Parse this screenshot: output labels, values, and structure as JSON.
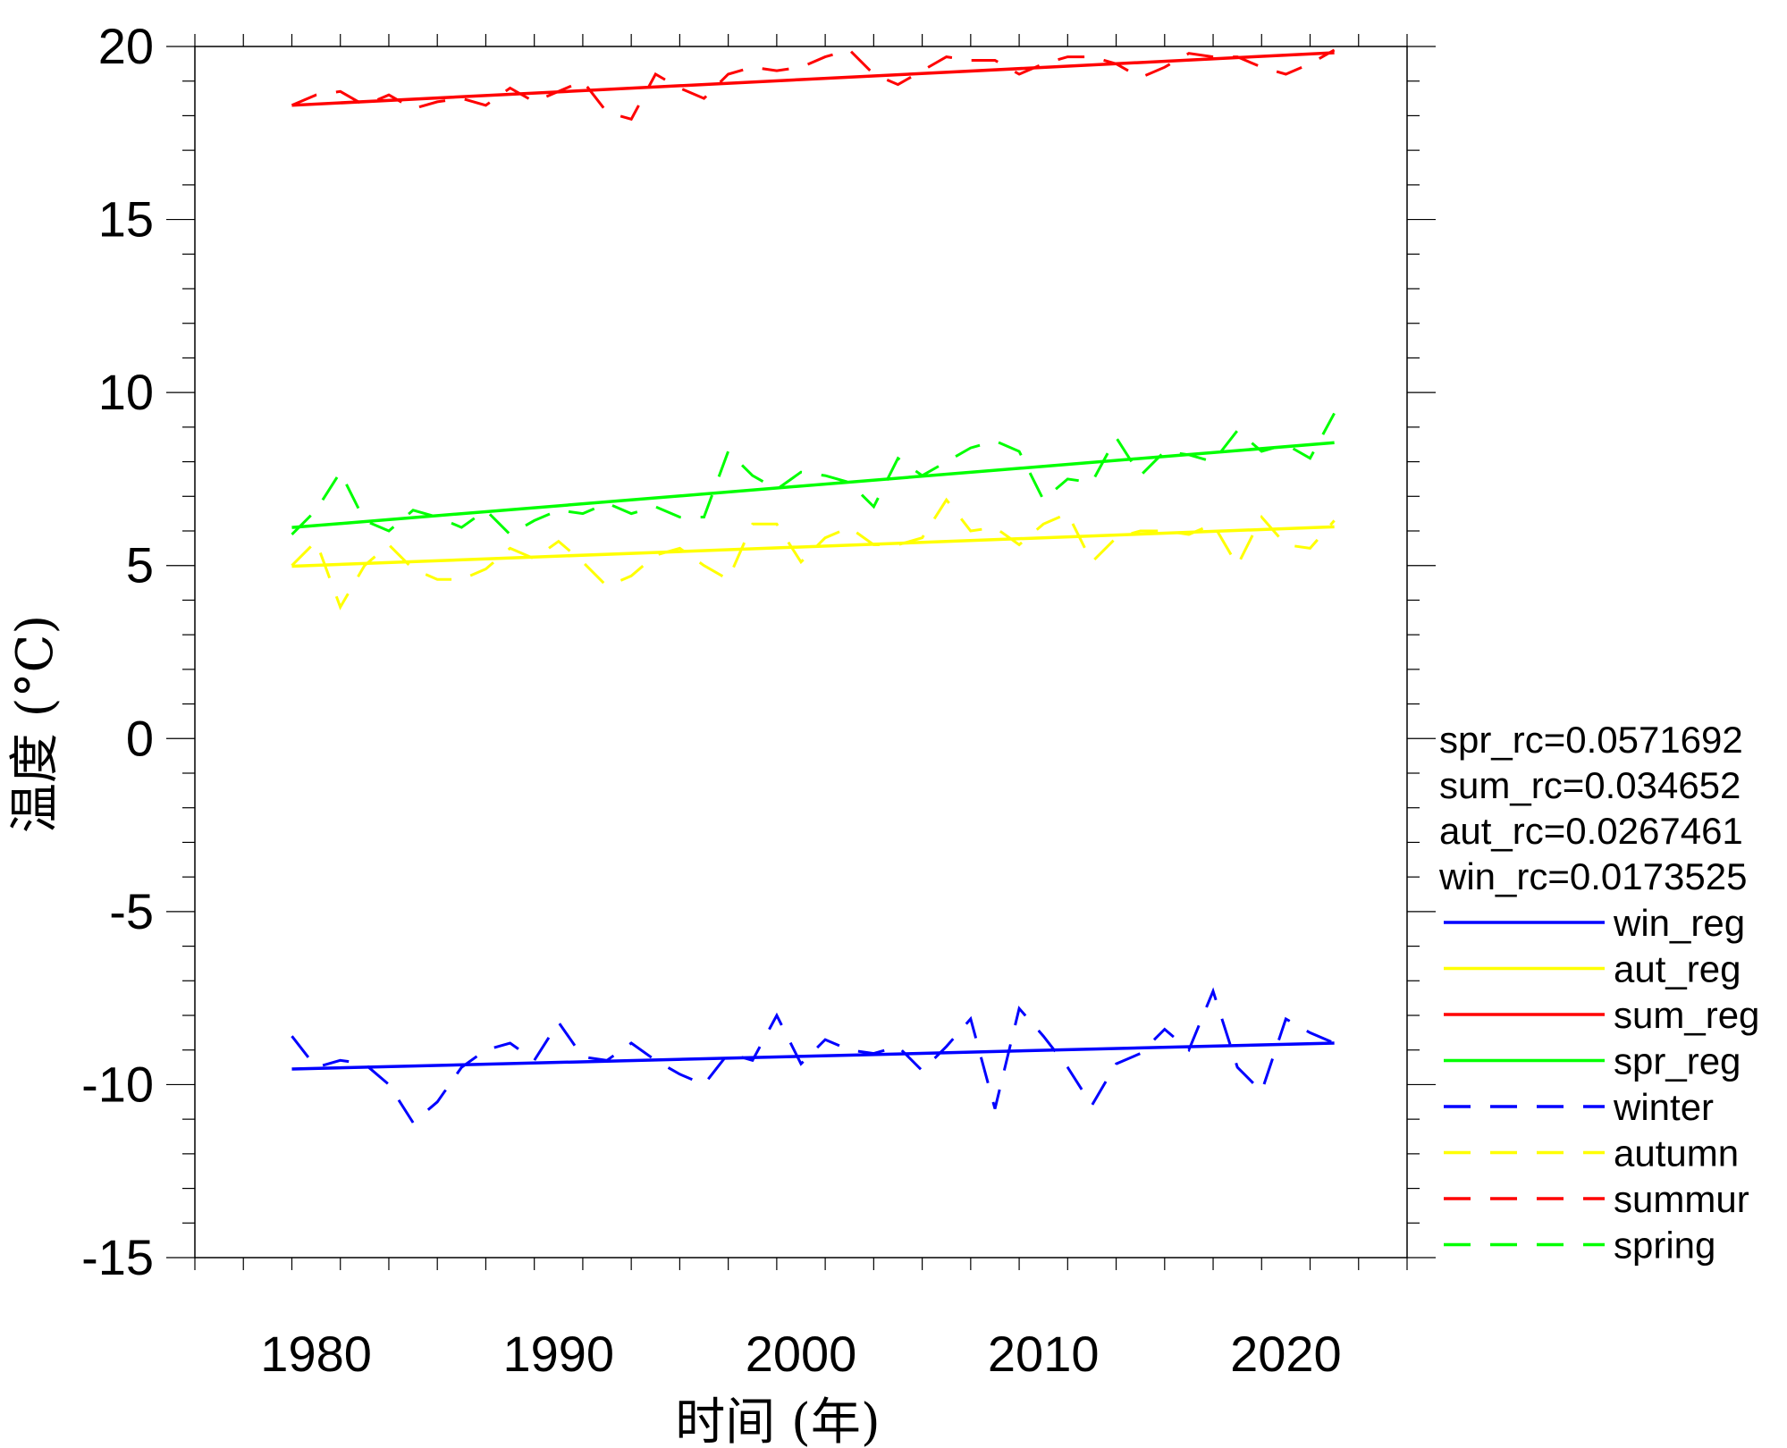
{
  "chart_data": {
    "type": "line",
    "title": "",
    "xlabel": "时间 (年)",
    "ylabel": "温度 (°C)",
    "xlim": [
      1975,
      2025
    ],
    "ylim": [
      -15,
      20
    ],
    "xticks": [
      1980,
      1990,
      2000,
      2010,
      2020
    ],
    "yticks": [
      20,
      15,
      10,
      5,
      0,
      -5,
      -10,
      -15
    ],
    "grid": false,
    "legend_position": "right",
    "x": [
      1979,
      1980,
      1981,
      1982,
      1983,
      1984,
      1985,
      1986,
      1987,
      1988,
      1989,
      1990,
      1991,
      1992,
      1993,
      1994,
      1995,
      1996,
      1997,
      1998,
      1999,
      2000,
      2001,
      2002,
      2003,
      2004,
      2005,
      2006,
      2007,
      2008,
      2009,
      2010,
      2011,
      2012,
      2013,
      2014,
      2015,
      2016,
      2017,
      2018,
      2019,
      2020,
      2021,
      2022
    ],
    "coefficients": [
      {
        "name": "spr_rc",
        "text": "spr_rc=0.0571692"
      },
      {
        "name": "sum_rc",
        "text": "sum_rc=0.034652"
      },
      {
        "name": "aut_rc",
        "text": "aut_rc=0.0267461"
      },
      {
        "name": "win_rc",
        "text": "win_rc=0.0173525"
      }
    ],
    "regression_lines": [
      {
        "name": "win_reg",
        "color": "#0000ff",
        "start": [
          1979,
          -9.55
        ],
        "end": [
          2022,
          -8.8
        ]
      },
      {
        "name": "aut_reg",
        "color": "#ffff00",
        "start": [
          1979,
          4.98
        ],
        "end": [
          2022,
          6.12
        ]
      },
      {
        "name": "sum_reg",
        "color": "#ff0000",
        "start": [
          1979,
          18.3
        ],
        "end": [
          2022,
          19.82
        ]
      },
      {
        "name": "spr_reg",
        "color": "#00ff00",
        "start": [
          1979,
          6.1
        ],
        "end": [
          2022,
          8.55
        ]
      }
    ],
    "series": [
      {
        "name": "winter",
        "color": "#0000ff",
        "style": "dashed",
        "values": [
          -8.6,
          -9.5,
          -9.3,
          -9.4,
          -10.0,
          -11.1,
          -10.5,
          -9.5,
          -9.0,
          -8.8,
          -9.3,
          -8.2,
          -9.2,
          -9.3,
          -8.8,
          -9.3,
          -9.7,
          -10.0,
          -9.1,
          -9.3,
          -8.0,
          -9.4,
          -8.7,
          -9.0,
          -9.1,
          -8.9,
          -9.6,
          -8.9,
          -8.1,
          -10.7,
          -7.8,
          -8.6,
          -9.5,
          -10.6,
          -9.4,
          -9.1,
          -8.4,
          -9.0,
          -7.3,
          -9.5,
          -10.2,
          -8.1,
          -8.5,
          -8.8
        ]
      },
      {
        "name": "autumn",
        "color": "#ffff00",
        "style": "dashed",
        "values": [
          5.0,
          5.7,
          3.8,
          5.0,
          5.6,
          4.9,
          4.6,
          4.6,
          4.9,
          5.5,
          5.2,
          5.7,
          5.1,
          4.4,
          4.7,
          5.3,
          5.5,
          5.0,
          4.6,
          6.2,
          6.2,
          5.1,
          5.8,
          6.1,
          5.6,
          5.6,
          5.8,
          6.9,
          6.0,
          6.1,
          5.6,
          6.2,
          6.5,
          5.1,
          5.8,
          6.0,
          6.0,
          5.9,
          6.2,
          5.0,
          6.4,
          5.6,
          5.5,
          6.3
        ]
      },
      {
        "name": "summur",
        "color": "#ff0000",
        "style": "dashed",
        "values": [
          18.3,
          18.6,
          18.7,
          18.3,
          18.6,
          18.2,
          18.4,
          18.5,
          18.3,
          18.8,
          18.4,
          18.7,
          19.0,
          18.1,
          17.9,
          19.2,
          18.8,
          18.5,
          19.2,
          19.4,
          19.3,
          19.4,
          19.7,
          19.9,
          19.2,
          18.9,
          19.3,
          19.7,
          19.6,
          19.6,
          19.2,
          19.5,
          19.7,
          19.7,
          19.5,
          19.1,
          19.4,
          19.8,
          19.7,
          19.7,
          19.4,
          19.2,
          19.5,
          19.9
        ]
      },
      {
        "name": "spring",
        "color": "#00ff00",
        "style": "dashed",
        "values": [
          5.9,
          6.6,
          7.7,
          6.3,
          6.0,
          6.6,
          6.4,
          6.1,
          6.6,
          5.9,
          6.3,
          6.6,
          6.5,
          6.8,
          6.5,
          6.7,
          6.4,
          6.4,
          8.3,
          7.6,
          7.2,
          7.7,
          7.6,
          7.4,
          6.7,
          8.1,
          7.6,
          8.0,
          8.4,
          8.6,
          8.3,
          6.9,
          7.5,
          7.4,
          8.7,
          7.6,
          8.3,
          8.2,
          8.0,
          8.9,
          8.3,
          8.5,
          8.1,
          9.4
        ]
      }
    ]
  }
}
